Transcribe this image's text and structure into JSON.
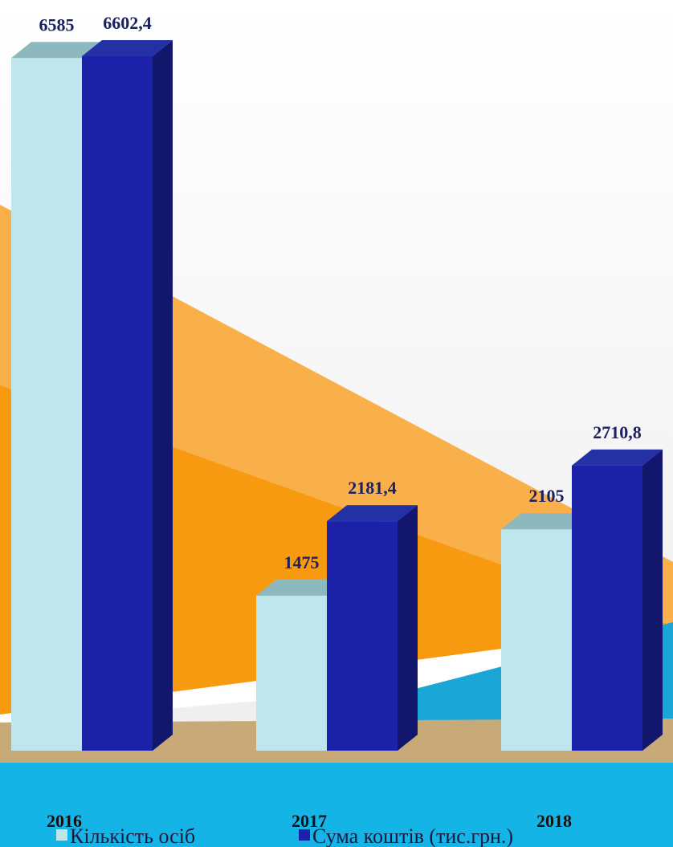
{
  "chart_data": {
    "type": "bar3d",
    "categories": [
      "2016",
      "2017",
      "2018"
    ],
    "series": [
      {
        "name": "Кількість осіб",
        "color": "#bfe6ec",
        "values": [
          6585,
          1475,
          2105
        ]
      },
      {
        "name": "Сума коштів (тис.грн.)",
        "color": "#1c22a8",
        "values": [
          6602.4,
          2181.4,
          2710.8
        ],
        "value_labels": [
          "6602,4",
          "2181,4",
          "2710,8"
        ]
      }
    ],
    "legend": "bottom"
  }
}
